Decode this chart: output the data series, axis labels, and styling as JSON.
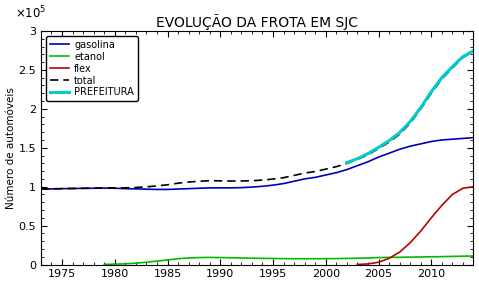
{
  "title": "EVOLUÇÃO DA FROTA EM SJC",
  "ylabel": "Número de automóveis",
  "xlabel": "",
  "ylim": [
    0,
    300000
  ],
  "xlim": [
    1973,
    2014
  ],
  "yticks": [
    0,
    50000,
    100000,
    150000,
    200000,
    250000,
    300000
  ],
  "ytick_labels": [
    "0",
    "0.5",
    "1",
    "1.5",
    "2",
    "2.5",
    "3"
  ],
  "xticks": [
    1975,
    1980,
    1985,
    1990,
    1995,
    2000,
    2005,
    2010
  ],
  "colors": {
    "gasolina": "#0000bb",
    "etanol": "#00bb00",
    "flex": "#bb0000",
    "total": "#000000",
    "prefeitura": "#00cccc"
  },
  "gasolina": {
    "years": [
      1973,
      1974,
      1975,
      1976,
      1977,
      1978,
      1979,
      1980,
      1981,
      1982,
      1983,
      1984,
      1985,
      1986,
      1987,
      1988,
      1989,
      1990,
      1991,
      1992,
      1993,
      1994,
      1995,
      1996,
      1997,
      1998,
      1999,
      2000,
      2001,
      2002,
      2003,
      2004,
      2005,
      2006,
      2007,
      2008,
      2009,
      2010,
      2011,
      2012,
      2013,
      2014
    ],
    "values": [
      97000,
      97200,
      97500,
      97700,
      97900,
      98000,
      98200,
      98000,
      97500,
      97200,
      96800,
      96500,
      96500,
      97000,
      97500,
      98000,
      98500,
      98500,
      98500,
      98800,
      99500,
      100500,
      102000,
      104000,
      107000,
      110000,
      112000,
      115000,
      118000,
      122000,
      127000,
      132000,
      138000,
      143000,
      148000,
      152000,
      155000,
      158000,
      160000,
      161000,
      162000,
      163000
    ]
  },
  "etanol": {
    "years": [
      1979,
      1980,
      1981,
      1982,
      1983,
      1984,
      1985,
      1986,
      1987,
      1988,
      1989,
      1990,
      1991,
      1992,
      1993,
      1994,
      1995,
      1996,
      1997,
      1998,
      1999,
      2000,
      2001,
      2002,
      2003,
      2004,
      2005,
      2006,
      2007,
      2008,
      2009,
      2010,
      2011,
      2012,
      2013,
      2014
    ],
    "values": [
      200,
      500,
      1000,
      1800,
      3000,
      4500,
      6000,
      7500,
      8500,
      9000,
      9200,
      9000,
      8800,
      8500,
      8200,
      8000,
      7800,
      7600,
      7500,
      7500,
      7500,
      7600,
      7700,
      7900,
      8200,
      8500,
      9000,
      9200,
      9400,
      9600,
      9800,
      10000,
      10200,
      10500,
      10800,
      11000
    ]
  },
  "flex": {
    "years": [
      2003,
      2004,
      2005,
      2006,
      2007,
      2008,
      2009,
      2010,
      2011,
      2012,
      2013,
      2014
    ],
    "values": [
      200,
      800,
      3000,
      8000,
      16000,
      28000,
      43000,
      60000,
      76000,
      90000,
      98000,
      100000
    ]
  },
  "total": {
    "years": [
      1973,
      1974,
      1975,
      1976,
      1977,
      1978,
      1979,
      1980,
      1981,
      1982,
      1983,
      1984,
      1985,
      1986,
      1987,
      1988,
      1989,
      1990,
      1991,
      1992,
      1993,
      1994,
      1995,
      1996,
      1997,
      1998,
      1999,
      2000,
      2001,
      2002,
      2003,
      2004,
      2005,
      2006,
      2007,
      2008,
      2009,
      2010,
      2011,
      2012,
      2013,
      2014
    ],
    "values": [
      97000,
      97200,
      97500,
      97700,
      97900,
      98200,
      98400,
      98500,
      98500,
      99000,
      99800,
      101000,
      102500,
      104500,
      106000,
      107000,
      107700,
      107500,
      107300,
      107300,
      107700,
      108500,
      109800,
      111600,
      114500,
      117500,
      119500,
      122600,
      125700,
      129900,
      135200,
      141000,
      149000,
      157200,
      167400,
      181600,
      199800,
      220000,
      238200,
      252500,
      265800,
      274000
    ]
  },
  "prefeitura": {
    "years": [
      2002,
      2003,
      2004,
      2005,
      2006,
      2007,
      2008,
      2009,
      2010,
      2011,
      2012,
      2013,
      2014
    ],
    "values": [
      131000,
      136000,
      142500,
      150500,
      159000,
      169500,
      183500,
      201500,
      222000,
      240000,
      254000,
      267000,
      274500
    ]
  }
}
